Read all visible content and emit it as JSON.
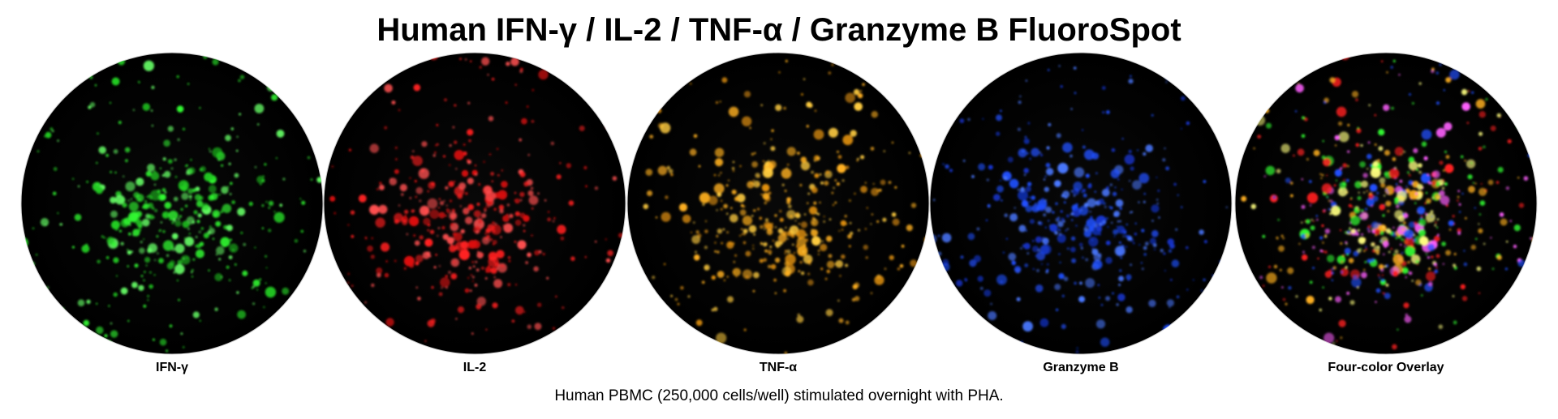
{
  "header": {
    "title": "Human IFN-γ / IL-2 / TNF-α / Granzyme B FluoroSpot"
  },
  "panels": [
    {
      "label": "IFN-γ"
    },
    {
      "label": "IL-2"
    },
    {
      "label": "TNF-α"
    },
    {
      "label": "Granzyme B"
    },
    {
      "label": "Four-color Overlay"
    }
  ],
  "caption": "Human PBMC (250,000 cells/well) stimulated overnight with PHA."
}
